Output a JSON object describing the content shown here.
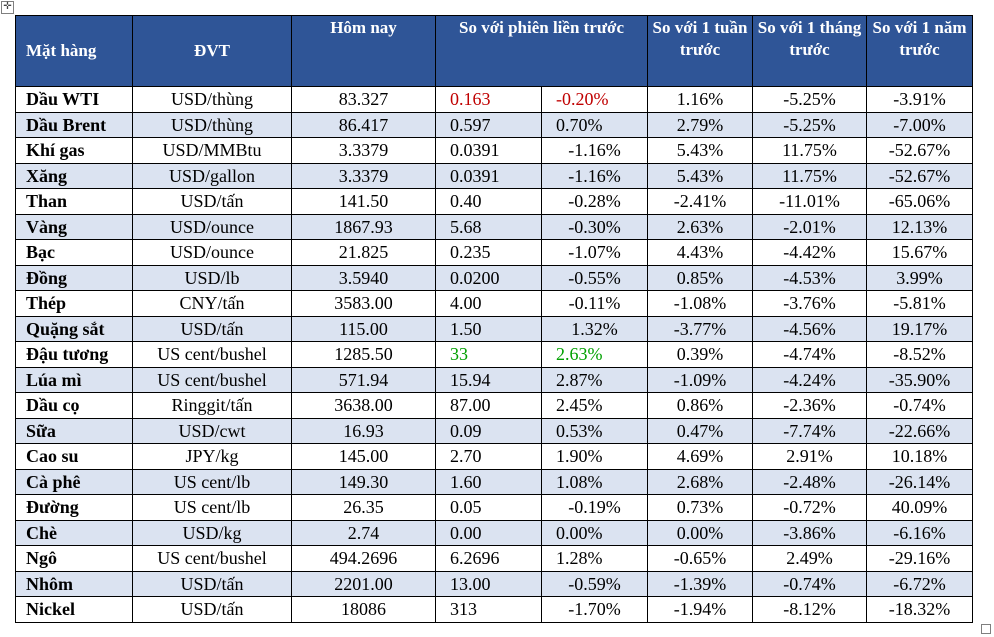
{
  "header": {
    "mat_hang": "Mặt hàng",
    "dvt": "ĐVT",
    "hom_nay": "Hôm nay",
    "so_phien": "So với phiên liền trước",
    "so_tuan": "So với 1 tuần trước",
    "so_thang": "So với 1 tháng trước",
    "so_nam": "So với 1 năm trước"
  },
  "rows": [
    {
      "name": "Dầu WTI",
      "unit": "USD/thùng",
      "today": "83.327",
      "chg": "0.163",
      "pct": "-0.20%",
      "week": "1.16%",
      "month": "-5.25%",
      "year": "-3.91%"
    },
    {
      "name": "Dầu Brent",
      "unit": "USD/thùng",
      "today": "86.417",
      "chg": "0.597",
      "pct": "0.70%",
      "week": "2.79%",
      "month": "-5.25%",
      "year": "-7.00%"
    },
    {
      "name": "Khí gas",
      "unit": "USD/MMBtu",
      "today": "3.3379",
      "chg": "0.0391",
      "pct": "-1.16%",
      "week": "5.43%",
      "month": "11.75%",
      "year": "-52.67%"
    },
    {
      "name": "Xăng",
      "unit": "USD/gallon",
      "today": "3.3379",
      "chg": "0.0391",
      "pct": "-1.16%",
      "week": "5.43%",
      "month": "11.75%",
      "year": "-52.67%"
    },
    {
      "name": "Than",
      "unit": "USD/tấn",
      "today": "141.50",
      "chg": "0.40",
      "pct": "-0.28%",
      "week": "-2.41%",
      "month": "-11.01%",
      "year": "-65.06%"
    },
    {
      "name": "Vàng",
      "unit": "USD/ounce",
      "today": "1867.93",
      "chg": "5.68",
      "pct": "-0.30%",
      "week": "2.63%",
      "month": "-2.01%",
      "year": "12.13%"
    },
    {
      "name": "Bạc",
      "unit": "USD/ounce",
      "today": "21.825",
      "chg": "0.235",
      "pct": "-1.07%",
      "week": "4.43%",
      "month": "-4.42%",
      "year": "15.67%"
    },
    {
      "name": "Đồng",
      "unit": "USD/lb",
      "today": "3.5940",
      "chg": "0.0200",
      "pct": "-0.55%",
      "week": "0.85%",
      "month": "-4.53%",
      "year": "3.99%"
    },
    {
      "name": "Thép",
      "unit": "CNY/tấn",
      "today": "3583.00",
      "chg": "4.00",
      "pct": "-0.11%",
      "week": "-1.08%",
      "month": "-3.76%",
      "year": "-5.81%"
    },
    {
      "name": "Quặng sắt",
      "unit": "USD/tấn",
      "today": "115.00",
      "chg": "1.50",
      "pct": "1.32%",
      "week": "-3.77%",
      "month": "-4.56%",
      "year": "19.17%"
    },
    {
      "name": "Đậu tương",
      "unit": "US cent/bushel",
      "today": "1285.50",
      "chg": "33",
      "pct": "2.63%",
      "week": "0.39%",
      "month": "-4.74%",
      "year": "-8.52%"
    },
    {
      "name": "Lúa mì",
      "unit": "US cent/bushel",
      "today": "571.94",
      "chg": "15.94",
      "pct": "2.87%",
      "week": "-1.09%",
      "month": "-4.24%",
      "year": "-35.90%"
    },
    {
      "name": "Dầu cọ",
      "unit": "Ringgit/tấn",
      "today": "3638.00",
      "chg": "87.00",
      "pct": "2.45%",
      "week": "0.86%",
      "month": "-2.36%",
      "year": "-0.74%"
    },
    {
      "name": "Sữa",
      "unit": "USD/cwt",
      "today": "16.93",
      "chg": "0.09",
      "pct": "0.53%",
      "week": "0.47%",
      "month": "-7.74%",
      "year": "-22.66%"
    },
    {
      "name": "Cao su",
      "unit": "JPY/kg",
      "today": "145.00",
      "chg": "2.70",
      "pct": "1.90%",
      "week": "4.69%",
      "month": "2.91%",
      "year": "10.18%"
    },
    {
      "name": "Cà phê",
      "unit": "US cent/lb",
      "today": "149.30",
      "chg": "1.60",
      "pct": "1.08%",
      "week": "2.68%",
      "month": "-2.48%",
      "year": "-26.14%"
    },
    {
      "name": "Đường",
      "unit": "US cent/lb",
      "today": "26.35",
      "chg": "0.05",
      "pct": "-0.19%",
      "week": "0.73%",
      "month": "-0.72%",
      "year": "40.09%"
    },
    {
      "name": "Chè",
      "unit": "USD/kg",
      "today": "2.74",
      "chg": "0.00",
      "pct": "0.00%",
      "week": "0.00%",
      "month": "-3.86%",
      "year": "-6.16%"
    },
    {
      "name": "Ngô",
      "unit": "US cent/bushel",
      "today": "494.2696",
      "chg": "6.2696",
      "pct": "1.28%",
      "week": "-0.65%",
      "month": "2.49%",
      "year": "-29.16%"
    },
    {
      "name": "Nhôm",
      "unit": "USD/tấn",
      "today": "2201.00",
      "chg": "13.00",
      "pct": "-0.59%",
      "week": "-1.39%",
      "month": "-0.74%",
      "year": "-6.72%"
    },
    {
      "name": "Nickel",
      "unit": "USD/tấn",
      "today": "18086",
      "chg": "313",
      "pct": "-1.70%",
      "week": "-1.94%",
      "month": "-8.12%",
      "year": "-18.32%"
    }
  ],
  "colors": {
    "header_bg": "#2f5597",
    "stripe": "#dbe3f1",
    "red": "#c00000",
    "green": "#00a000"
  },
  "icons": {
    "move": "move-handle-icon",
    "resize": "resize-handle-icon"
  }
}
